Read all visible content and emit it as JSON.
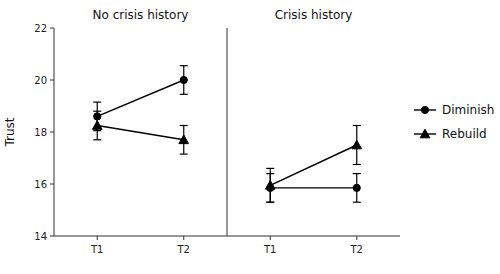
{
  "chart_data": [
    {
      "type": "line",
      "title": "No crisis history",
      "ylabel": "Trust",
      "categories": [
        "T1",
        "T2"
      ],
      "series": [
        {
          "name": "Diminish",
          "color": "#000000",
          "marker": "circle",
          "values": [
            18.6,
            20.0
          ],
          "errors": [
            0.55,
            0.55
          ]
        },
        {
          "name": "Rebuild",
          "color": "#000000",
          "marker": "triangle",
          "values": [
            18.25,
            17.7
          ],
          "errors": [
            0.55,
            0.55
          ]
        }
      ],
      "ylim": [
        14,
        22
      ],
      "yticks": [
        14,
        16,
        18,
        20,
        22
      ],
      "grid": false
    },
    {
      "type": "line",
      "title": "Crisis history",
      "categories": [
        "T1",
        "T2"
      ],
      "series": [
        {
          "name": "Diminish",
          "color": "#000000",
          "marker": "circle",
          "values": [
            15.85,
            15.85
          ],
          "errors": [
            0.55,
            0.55
          ]
        },
        {
          "name": "Rebuild",
          "color": "#000000",
          "marker": "triangle",
          "values": [
            15.95,
            17.5
          ],
          "errors": [
            0.65,
            0.75
          ]
        }
      ],
      "ylim": [
        14,
        22
      ],
      "grid": false,
      "tick_labels": "x",
      "legend": "right"
    }
  ]
}
